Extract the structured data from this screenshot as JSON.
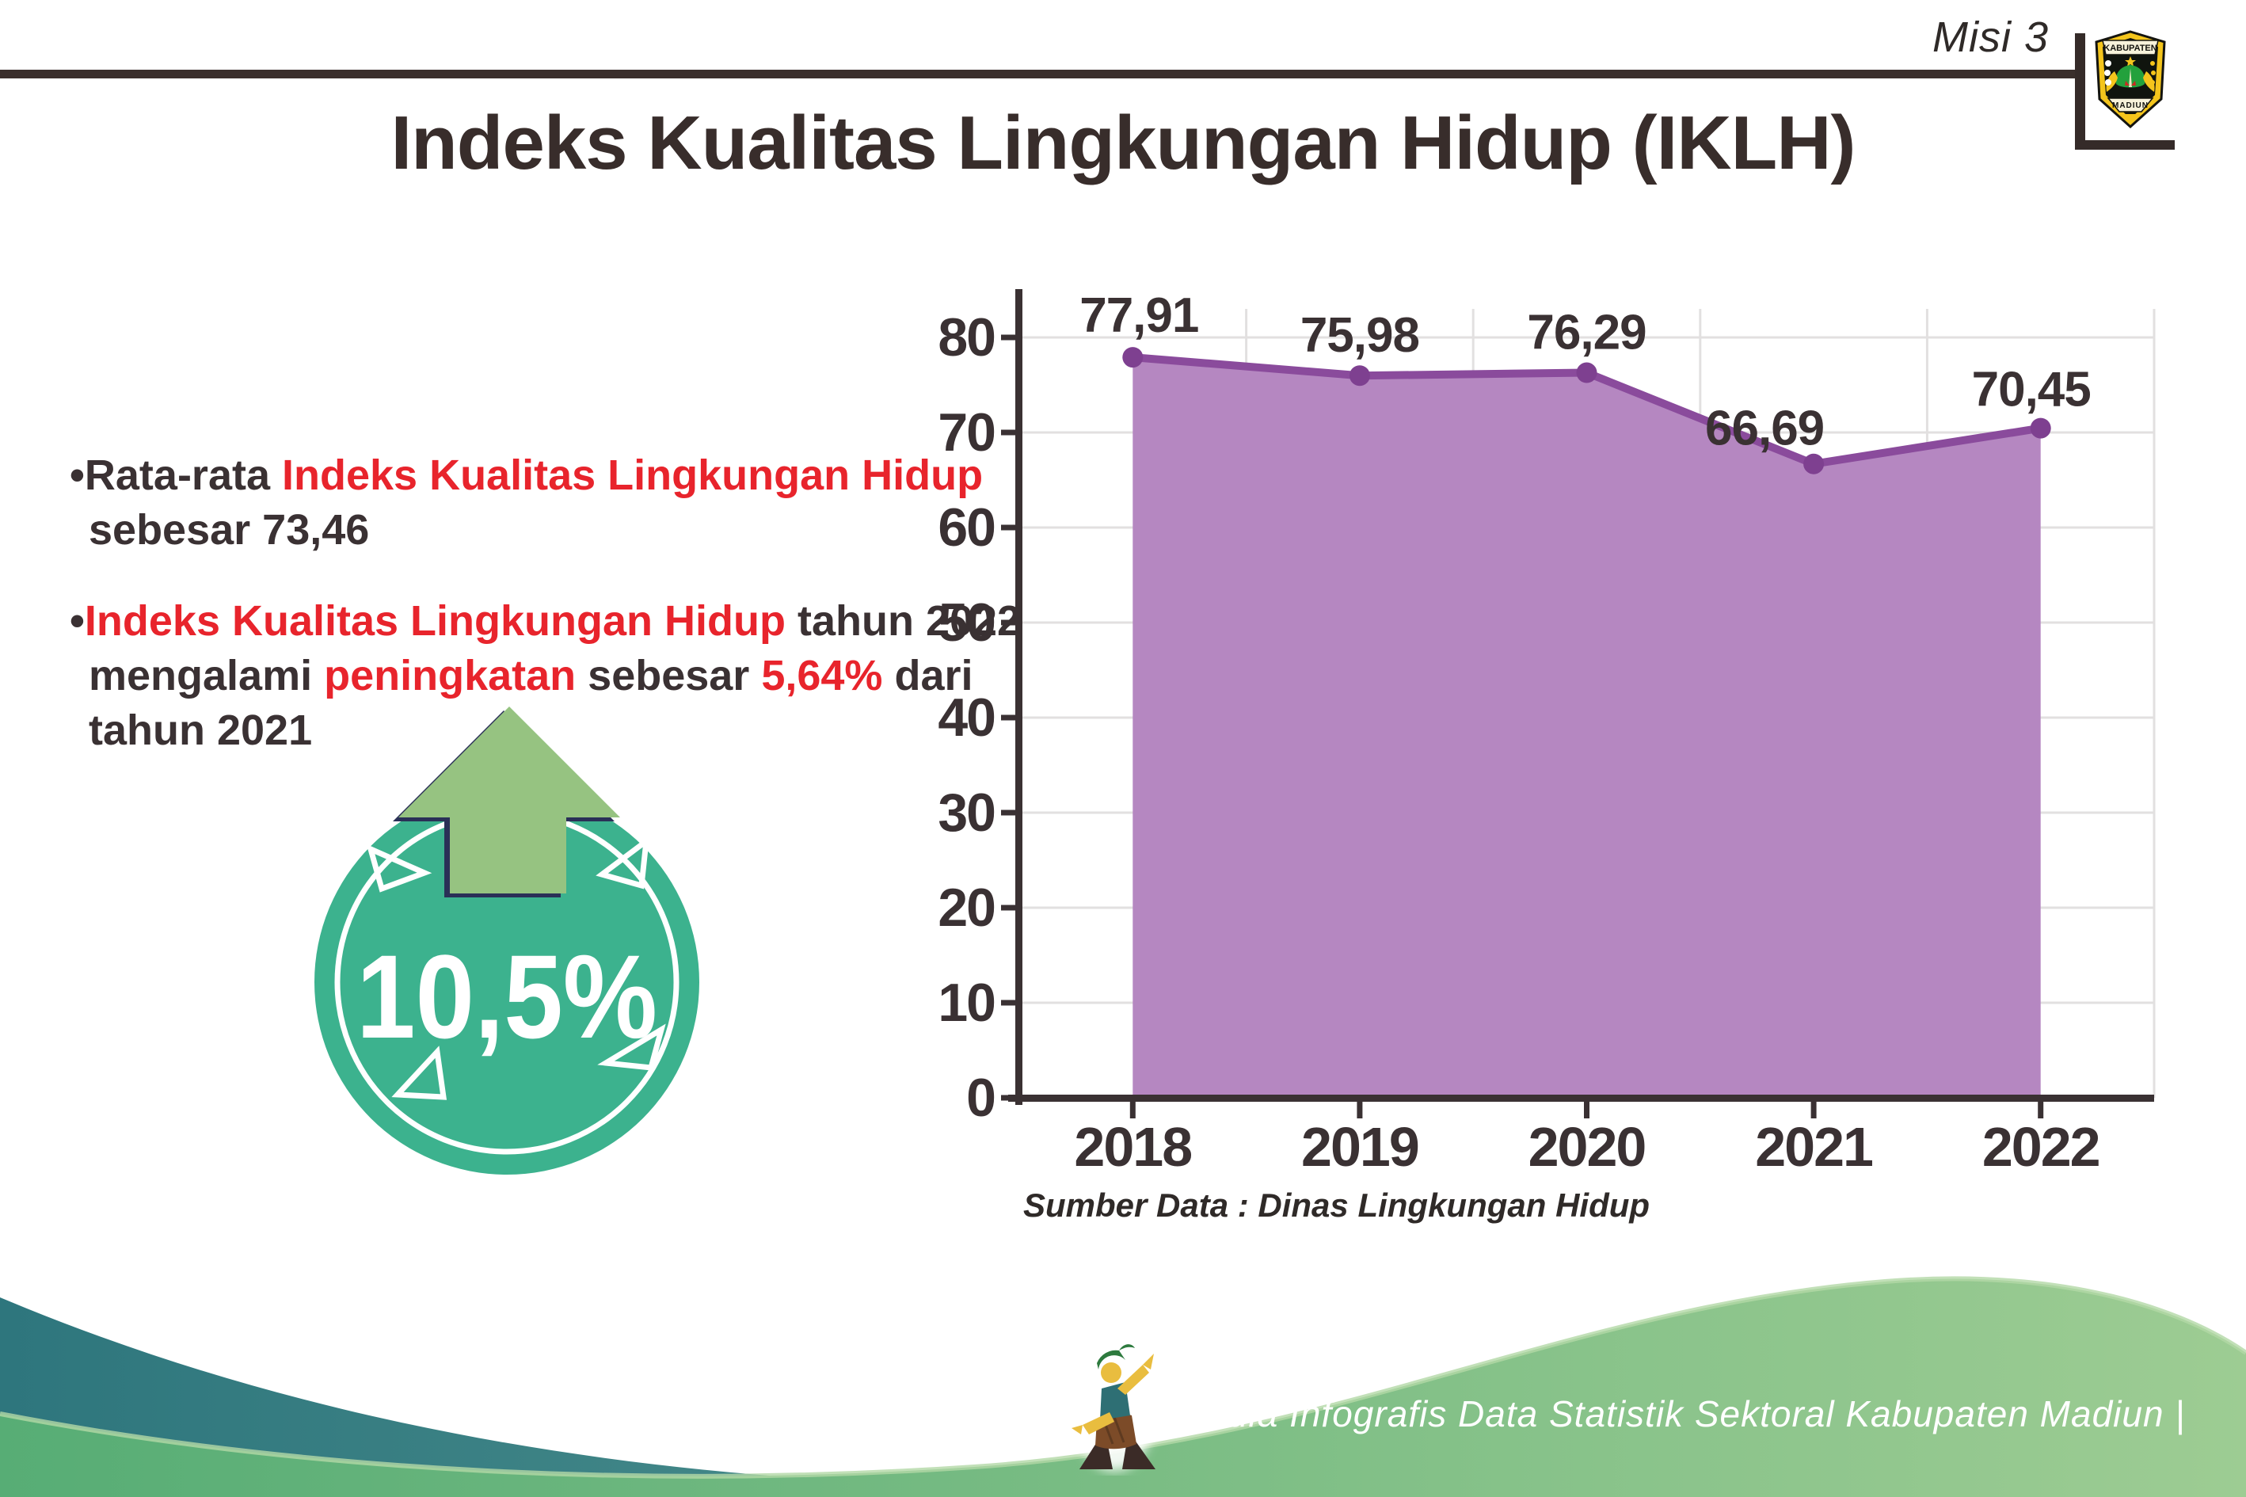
{
  "header": {
    "misi": "Misi 3",
    "title": "Indeks Kualitas Lingkungan Hidup (IKLH)",
    "logo": {
      "top_text": "KABUPATEN",
      "bottom_text": "MADIUN"
    }
  },
  "bullets": {
    "dot": "•",
    "item1": {
      "d1": "Rata-rata ",
      "h1": "Indeks Kualitas Lingkungan Hidup",
      "d2": "sebesar 73,46"
    },
    "item2": {
      "h1": "Indeks Kualitas Lingkungan Hidup",
      "d1": " tahun 2022",
      "d2": "mengalami ",
      "h2": "peningkatan",
      "d3": " sebesar ",
      "h3": "5,64%",
      "d4": " dari",
      "d5": "tahun 2021"
    }
  },
  "badge": {
    "value": "10,5%"
  },
  "chart_data": {
    "type": "area",
    "categories": [
      "2018",
      "2019",
      "2020",
      "2021",
      "2022"
    ],
    "values": [
      77.91,
      75.98,
      76.29,
      66.69,
      70.45
    ],
    "point_labels": [
      "77,91",
      "75,98",
      "76,29",
      "66,69",
      "70,45"
    ],
    "title": "",
    "xlabel": "",
    "ylabel": "",
    "ylim": [
      0,
      85
    ],
    "yticks": [
      0,
      10,
      20,
      30,
      40,
      50,
      60,
      70,
      80
    ],
    "grid": true,
    "legend": "none",
    "source_note": "Sumber Data : Dinas Lingkungan Hidup",
    "area_color": "#b587c1",
    "line_color": "#8a4b9c",
    "marker_color": "#7e4090",
    "grid_color": "#e2e0e0",
    "axis_color": "#3a3133"
  },
  "footer": {
    "text": "Media Infografis Data Statistik Sektoral Kabupaten Madiun |"
  },
  "colors": {
    "text_dark": "#3a3133",
    "accent_red": "#e8242c",
    "badge_teal": "#3cb28e",
    "arrow_green": "#96c381",
    "arrow_outline": "#2a3057",
    "wave_teal_dark": "#2e767d",
    "wave_teal_light": "#68a79c",
    "wave_green_dark": "#57ad75",
    "wave_green_light": "#9dcc93"
  }
}
